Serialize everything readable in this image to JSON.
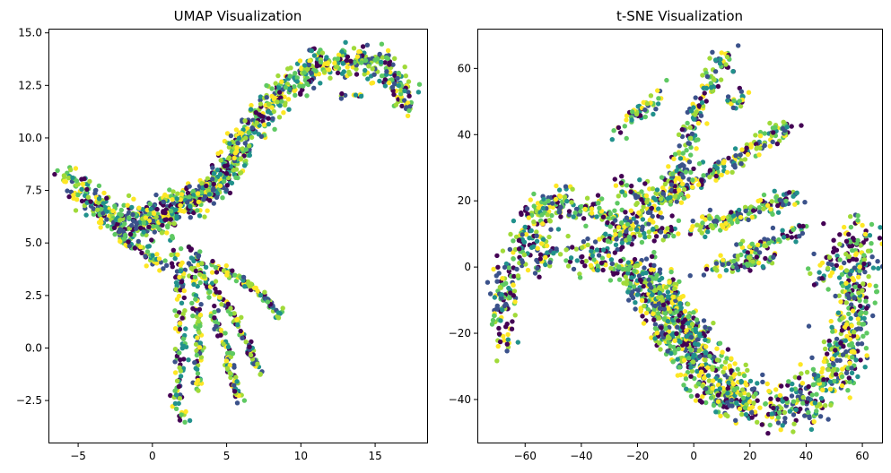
{
  "palette": [
    "#440154",
    "#3b528b",
    "#21918c",
    "#5ec962",
    "#a0da39",
    "#fde725"
  ],
  "chart_data": [
    {
      "type": "scatter",
      "title": "UMAP Visualization",
      "xlabel": "",
      "ylabel": "",
      "xlim": [
        -7,
        18.5
      ],
      "ylim": [
        -4.5,
        15.2
      ],
      "xticks": [
        -5,
        0,
        5,
        10,
        15
      ],
      "yticks": [
        -2.5,
        0.0,
        2.5,
        5.0,
        7.5,
        10.0,
        12.5,
        15.0
      ],
      "grid": false,
      "legend": "none",
      "marker_color": "viridis",
      "clusters": [
        {
          "shape": "curve",
          "path": [
            [
              -5.8,
              8.3
            ],
            [
              -4.5,
              7.3
            ],
            [
              -3.0,
              6.3
            ],
            [
              -1.0,
              6.2
            ],
            [
              1.0,
              6.5
            ],
            [
              3.0,
              7.0
            ],
            [
              5.0,
              8.3
            ],
            [
              6.5,
              10.2
            ],
            [
              8.5,
              12.2
            ],
            [
              11.0,
              13.4
            ],
            [
              14.0,
              13.8
            ],
            [
              16.0,
              13.3
            ],
            [
              17.4,
              11.6
            ]
          ],
          "n": 900,
          "spread": 0.38
        },
        {
          "shape": "curve",
          "path": [
            [
              -2.5,
              5.8
            ],
            [
              0.0,
              5.8
            ],
            [
              2.5,
              6.8
            ],
            [
              4.5,
              7.8
            ],
            [
              6.0,
              10.0
            ]
          ],
          "n": 220,
          "spread": 0.3
        },
        {
          "shape": "curve",
          "path": [
            [
              1.2,
              5.3
            ],
            [
              1.8,
              3.5
            ],
            [
              2.0,
              1.0
            ],
            [
              1.8,
              -1.0
            ],
            [
              1.5,
              -2.5
            ],
            [
              2.2,
              -3.6
            ]
          ],
          "n": 110,
          "spread": 0.18
        },
        {
          "shape": "curve",
          "path": [
            [
              2.5,
              5.0
            ],
            [
              3.0,
              2.0
            ],
            [
              3.2,
              0.0
            ],
            [
              3.0,
              -2.0
            ]
          ],
          "n": 90,
          "spread": 0.14
        },
        {
          "shape": "curve",
          "path": [
            [
              3.0,
              4.5
            ],
            [
              4.0,
              2.0
            ],
            [
              5.0,
              0.0
            ],
            [
              5.8,
              -2.5
            ]
          ],
          "n": 110,
          "spread": 0.14
        },
        {
          "shape": "curve",
          "path": [
            [
              4.0,
              4.0
            ],
            [
              6.0,
              3.2
            ],
            [
              7.5,
              2.5
            ],
            [
              8.6,
              1.6
            ]
          ],
          "n": 90,
          "spread": 0.12
        },
        {
          "shape": "curve",
          "path": [
            [
              4.0,
              3.0
            ],
            [
              5.5,
              1.5
            ],
            [
              6.5,
              0.0
            ],
            [
              7.2,
              -1.2
            ]
          ],
          "n": 80,
          "spread": 0.12
        },
        {
          "shape": "curve",
          "path": [
            [
              -2.5,
              5.5
            ],
            [
              -1.0,
              4.8
            ],
            [
              0.0,
              4.2
            ],
            [
              1.0,
              3.8
            ]
          ],
          "n": 60,
          "spread": 0.15
        },
        {
          "shape": "curve",
          "path": [
            [
              12.5,
              12.0
            ],
            [
              12.8,
              12.0
            ],
            [
              14.5,
              12.0
            ]
          ],
          "n": 10,
          "spread": 0.05
        }
      ]
    },
    {
      "type": "scatter",
      "title": "t-SNE Visualization",
      "xlabel": "",
      "ylabel": "",
      "xlim": [
        -77,
        67
      ],
      "ylim": [
        -53,
        72
      ],
      "xticks": [
        -60,
        -40,
        -20,
        0,
        20,
        40,
        60
      ],
      "yticks": [
        -40,
        -20,
        0,
        20,
        40,
        60
      ],
      "grid": false,
      "legend": "none",
      "marker_color": "viridis",
      "clusters": [
        {
          "shape": "curve",
          "path": [
            [
              -62,
              10
            ],
            [
              -55,
              18
            ],
            [
              -45,
              20
            ],
            [
              -38,
              18
            ],
            [
              -30,
              15
            ],
            [
              -20,
              10
            ]
          ],
          "n": 180,
          "spread": 2.2
        },
        {
          "shape": "curve",
          "path": [
            [
              -68,
              -25
            ],
            [
              -69,
              -12
            ],
            [
              -66,
              0
            ],
            [
              -60,
              8
            ],
            [
              -50,
              14
            ]
          ],
          "n": 160,
          "spread": 2.4
        },
        {
          "shape": "curve",
          "path": [
            [
              -60,
              0
            ],
            [
              -50,
              5
            ],
            [
              -38,
              2
            ],
            [
              -25,
              0
            ],
            [
              -12,
              -2
            ]
          ],
          "n": 120,
          "spread": 2.5
        },
        {
          "shape": "curve",
          "path": [
            [
              -12,
              -5
            ],
            [
              -6,
              -15
            ],
            [
              0,
              -22
            ],
            [
              6,
              -30
            ],
            [
              15,
              -38
            ],
            [
              25,
              -42
            ],
            [
              35,
              -42
            ],
            [
              45,
              -38
            ],
            [
              52,
              -30
            ],
            [
              56,
              -18
            ],
            [
              57,
              -5
            ],
            [
              58,
              5
            ],
            [
              58,
              12
            ]
          ],
          "n": 900,
          "spread": 3.6
        },
        {
          "shape": "curve",
          "path": [
            [
              -20,
              -5
            ],
            [
              -10,
              -20
            ],
            [
              -2,
              -32
            ],
            [
              8,
              -40
            ],
            [
              20,
              -44
            ]
          ],
          "n": 200,
          "spread": 2.5
        },
        {
          "shape": "curve",
          "path": [
            [
              -25,
              0
            ],
            [
              -15,
              -8
            ],
            [
              -5,
              -15
            ],
            [
              2,
              -25
            ]
          ],
          "n": 220,
          "spread": 2.5
        },
        {
          "shape": "curve",
          "path": [
            [
              -35,
              5
            ],
            [
              -25,
              10
            ],
            [
              -15,
              12
            ],
            [
              -5,
              10
            ]
          ],
          "n": 100,
          "spread": 2.2
        },
        {
          "shape": "curve",
          "path": [
            [
              -20,
              15
            ],
            [
              -10,
              22
            ],
            [
              -5,
              30
            ],
            [
              0,
              45
            ],
            [
              5,
              55
            ],
            [
              12,
              65
            ]
          ],
          "n": 200,
          "spread": 1.8
        },
        {
          "shape": "curve",
          "path": [
            [
              -10,
              20
            ],
            [
              0,
              25
            ],
            [
              10,
              30
            ],
            [
              20,
              36
            ],
            [
              28,
              40
            ],
            [
              35,
              42
            ]
          ],
          "n": 160,
          "spread": 1.6
        },
        {
          "shape": "curve",
          "path": [
            [
              0,
              12
            ],
            [
              10,
              14
            ],
            [
              20,
              17
            ],
            [
              30,
              20
            ],
            [
              38,
              21
            ]
          ],
          "n": 140,
          "spread": 1.5
        },
        {
          "shape": "curve",
          "path": [
            [
              15,
              5
            ],
            [
              25,
              7
            ],
            [
              35,
              10
            ],
            [
              40,
              12
            ]
          ],
          "n": 60,
          "spread": 1.3
        },
        {
          "shape": "curve",
          "path": [
            [
              5,
              0
            ],
            [
              15,
              1
            ],
            [
              25,
              3
            ],
            [
              30,
              2
            ]
          ],
          "n": 80,
          "spread": 1.4
        },
        {
          "shape": "curve",
          "path": [
            [
              -28,
              25
            ],
            [
              -18,
              22
            ],
            [
              -8,
              22
            ],
            [
              -2,
              26
            ]
          ],
          "n": 70,
          "spread": 1.5
        },
        {
          "shape": "curve",
          "path": [
            [
              13,
              50
            ],
            [
              15,
              50
            ],
            [
              18,
              52
            ]
          ],
          "n": 20,
          "spread": 1.0
        },
        {
          "shape": "curve",
          "path": [
            [
              -28,
              40
            ],
            [
              -22,
              45
            ],
            [
              -15,
              50
            ],
            [
              -10,
              55
            ]
          ],
          "n": 50,
          "spread": 1.4
        },
        {
          "shape": "curve",
          "path": [
            [
              45,
              -5
            ],
            [
              48,
              0
            ],
            [
              50,
              5
            ]
          ],
          "n": 30,
          "spread": 2.5
        }
      ]
    }
  ]
}
